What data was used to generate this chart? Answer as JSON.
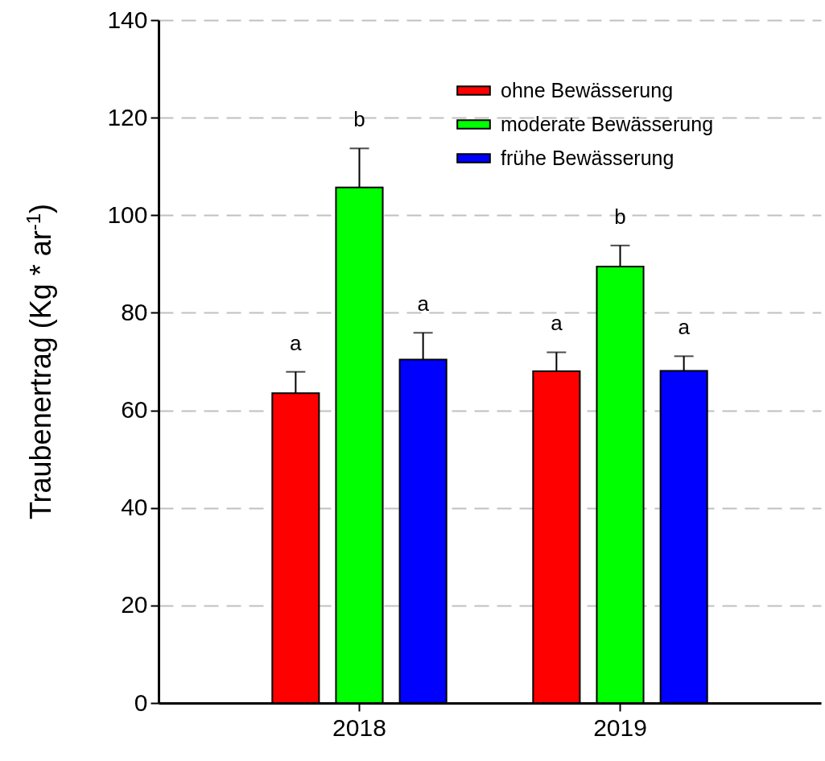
{
  "chart_data": {
    "type": "bar",
    "ylabel": "Traubenertrag (Kg * ar$^{-1}$)",
    "categories": [
      "2018",
      "2019"
    ],
    "series": [
      {
        "name": "ohne Bewässerung",
        "color": "#ff0000",
        "values": [
          63.5,
          68.0
        ],
        "errors": [
          4.4,
          3.9
        ]
      },
      {
        "name": "moderate Bewässerung",
        "color": "#00ff00",
        "values": [
          105.7,
          89.5
        ],
        "errors": [
          8.0,
          4.3
        ]
      },
      {
        "name": "frühe Bewässerung",
        "color": "#0000ff",
        "values": [
          70.4,
          68.1
        ],
        "errors": [
          5.5,
          3.0
        ]
      }
    ],
    "ylim": [
      0,
      140
    ],
    "yticks": [
      0,
      20,
      40,
      60,
      80,
      100,
      120,
      140
    ],
    "grid": "y",
    "legend": "top right",
    "annotations": [
      "a",
      "b",
      "a",
      "a",
      "b",
      "a"
    ]
  }
}
